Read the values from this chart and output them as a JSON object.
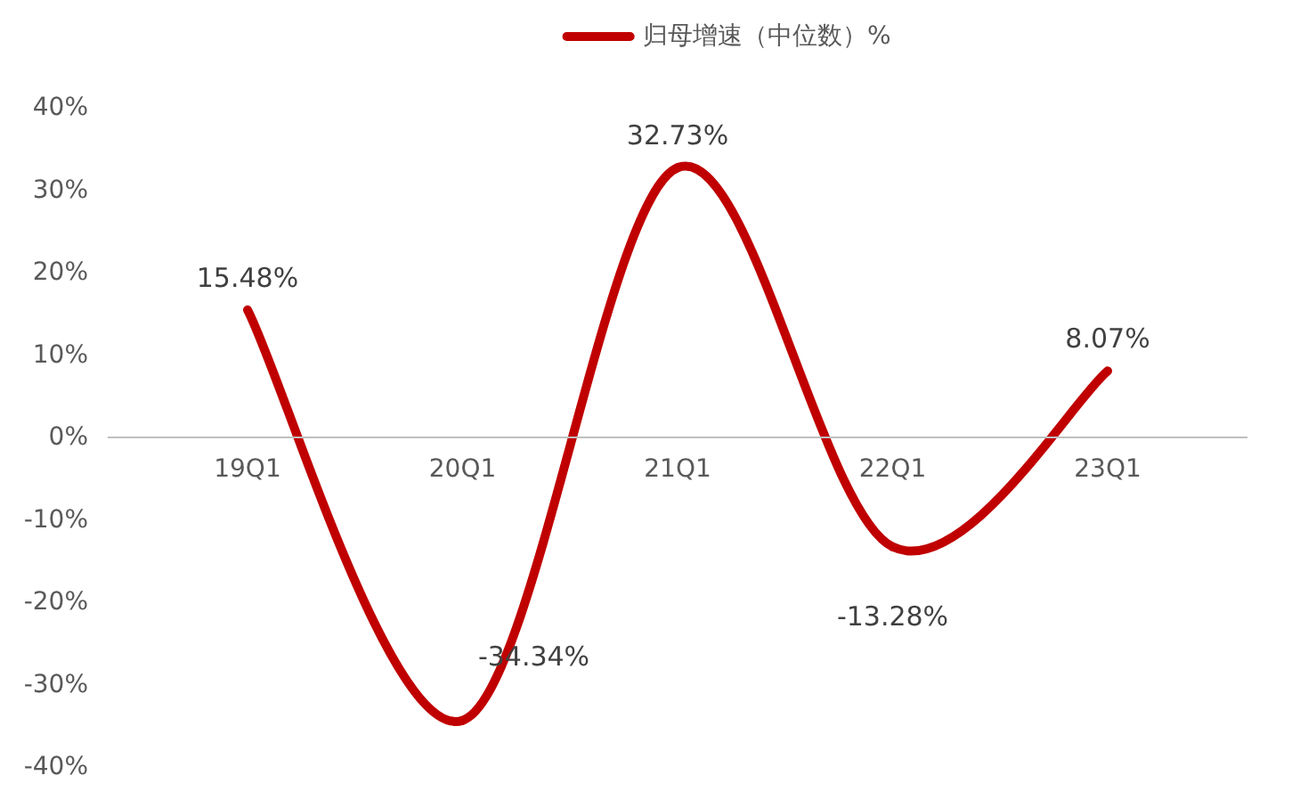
{
  "chart_data": {
    "type": "line",
    "categories": [
      "19Q1",
      "20Q1",
      "21Q1",
      "22Q1",
      "23Q1"
    ],
    "series": [
      {
        "name": "归母增速（中位数）%",
        "color": "#c00000",
        "values": [
          15.48,
          -34.34,
          32.73,
          -13.28,
          8.07
        ],
        "value_labels": [
          "15.48%",
          "-34.34%",
          "32.73%",
          "-13.28%",
          "8.07%"
        ]
      }
    ],
    "ylim": [
      -40,
      40
    ],
    "yticks": [
      {
        "value": -40,
        "label": "-40%"
      },
      {
        "value": -30,
        "label": "-30%"
      },
      {
        "value": -20,
        "label": "-20%"
      },
      {
        "value": -10,
        "label": "-10%"
      },
      {
        "value": 0,
        "label": "0%"
      },
      {
        "value": 10,
        "label": "10%"
      },
      {
        "value": 20,
        "label": "20%"
      },
      {
        "value": 30,
        "label": "30%"
      },
      {
        "value": 40,
        "label": "40%"
      }
    ],
    "grid": false,
    "legend": "top",
    "marker": "none",
    "line_style": "solid"
  }
}
